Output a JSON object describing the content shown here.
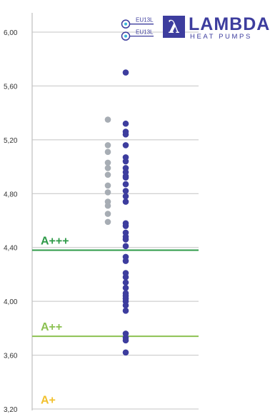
{
  "chart_data": {
    "type": "scatter",
    "ylim": [
      3.2,
      6.0
    ],
    "yticks": [
      "6,00",
      "5,60",
      "5,20",
      "4,80",
      "4,40",
      "4,00",
      "3,60",
      "3,20"
    ],
    "ytick_values": [
      6.0,
      5.6,
      5.2,
      4.8,
      4.4,
      4.0,
      3.6,
      3.2
    ],
    "series": [
      {
        "color": "#a7adb4",
        "values": [
          5.35,
          5.16,
          5.11,
          5.03,
          4.99,
          4.94,
          4.86,
          4.81,
          4.74,
          4.71,
          4.65,
          4.59
        ]
      },
      {
        "color": "#3d3d9e",
        "values": [
          5.7,
          5.32,
          5.26,
          5.24,
          5.16,
          5.07,
          5.04,
          4.99,
          4.96,
          4.93,
          4.92,
          4.87,
          4.82,
          4.78,
          4.74,
          4.58,
          4.56,
          4.51,
          4.48,
          4.46,
          4.41,
          4.33,
          4.3,
          4.21,
          4.18,
          4.14,
          4.1,
          4.06,
          4.04,
          4.02,
          4.0,
          3.97,
          3.93,
          3.76,
          3.73,
          3.71,
          3.62
        ]
      }
    ],
    "thresholds": [
      {
        "label": "A+++",
        "value": 4.38,
        "color": "#2e9a48"
      },
      {
        "label": "A++",
        "value": 3.74,
        "color": "#8cc152"
      },
      {
        "label": "A+",
        "value": 3.24,
        "color": "#f2c12e"
      }
    ],
    "markers": [
      {
        "label": "EU13L",
        "value": 6.06
      },
      {
        "label": "EU13L",
        "value": 5.97
      }
    ],
    "grid": true
  },
  "logo": {
    "symbol": "λ",
    "title": "LAMBDA",
    "subtitle": "HEAT PUMPS",
    "color": "#3d3d9e"
  }
}
